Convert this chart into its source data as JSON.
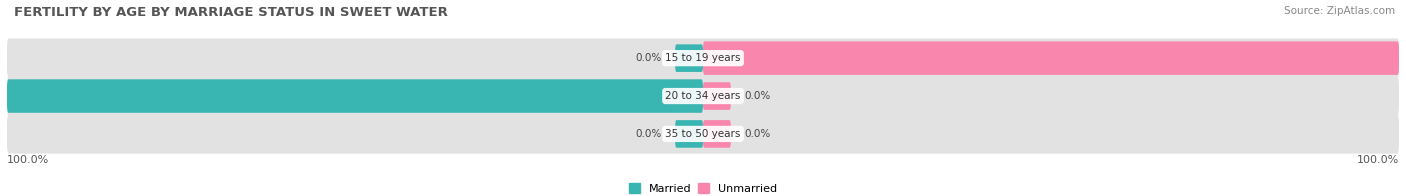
{
  "title": "FERTILITY BY AGE BY MARRIAGE STATUS IN SWEET WATER",
  "source": "Source: ZipAtlas.com",
  "categories": [
    "15 to 19 years",
    "20 to 34 years",
    "35 to 50 years"
  ],
  "married_values": [
    0.0,
    100.0,
    0.0
  ],
  "unmarried_values": [
    100.0,
    0.0,
    0.0
  ],
  "married_color": "#39b5b2",
  "unmarried_color": "#f986ac",
  "bar_bg_color": "#e2e2e2",
  "bar_height": 0.52,
  "title_fontsize": 9.5,
  "source_fontsize": 7.5,
  "label_fontsize": 7.5,
  "tick_fontsize": 8,
  "legend_fontsize": 8,
  "bottom_left": "100.0%",
  "bottom_right": "100.0%"
}
